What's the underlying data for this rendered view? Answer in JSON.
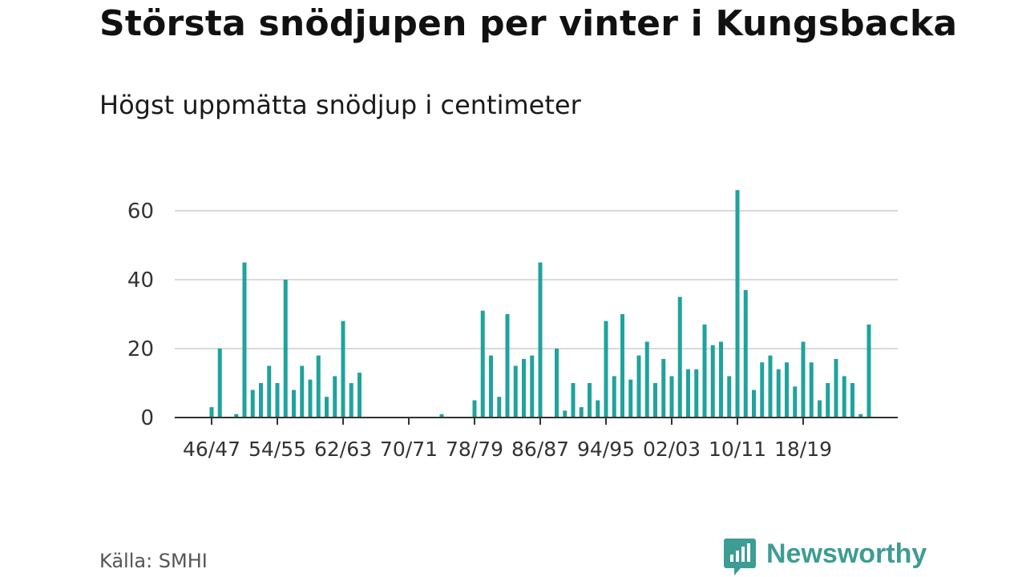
{
  "header": {
    "title": "Största snödjupen per vinter i Kungsbacka",
    "subtitle": "Högst uppmätta snödjup i centimeter"
  },
  "footer": {
    "source": "Källa: SMHI",
    "brand": "Newsworthy"
  },
  "colors": {
    "bar": "#1fa39c",
    "grid": "#d9d9d9",
    "axis": "#333333",
    "brand": "#3d9c94"
  },
  "chart_data": {
    "type": "bar",
    "title": "Största snödjupen per vinter i Kungsbacka",
    "subtitle": "Högst uppmätta snödjup i centimeter",
    "xlabel": "",
    "ylabel": "",
    "ylim": [
      0,
      70
    ],
    "yticks": [
      0,
      20,
      40,
      60
    ],
    "grid": true,
    "legend": "none",
    "x_tick_labels": [
      {
        "index": 2,
        "label": "46/47"
      },
      {
        "index": 10,
        "label": "54/55"
      },
      {
        "index": 18,
        "label": "62/63"
      },
      {
        "index": 26,
        "label": "70/71"
      },
      {
        "index": 34,
        "label": "78/79"
      },
      {
        "index": 42,
        "label": "86/87"
      },
      {
        "index": 50,
        "label": "94/95"
      },
      {
        "index": 58,
        "label": "02/03"
      },
      {
        "index": 66,
        "label": "10/11"
      },
      {
        "index": 74,
        "label": "18/19"
      }
    ],
    "values": [
      0,
      0,
      3,
      20,
      0,
      1,
      45,
      8,
      10,
      15,
      10,
      40,
      8,
      15,
      11,
      18,
      6,
      12,
      28,
      10,
      13,
      0,
      0,
      0,
      0,
      0,
      0,
      0,
      0,
      0,
      1,
      0,
      0,
      0,
      5,
      31,
      18,
      6,
      30,
      15,
      17,
      18,
      45,
      0,
      20,
      2,
      10,
      3,
      10,
      5,
      28,
      12,
      30,
      11,
      18,
      22,
      10,
      17,
      12,
      35,
      14,
      14,
      27,
      21,
      22,
      12,
      66,
      37,
      8,
      16,
      18,
      14,
      16,
      9,
      22,
      16,
      5,
      10,
      17,
      12,
      10,
      1,
      27
    ]
  }
}
